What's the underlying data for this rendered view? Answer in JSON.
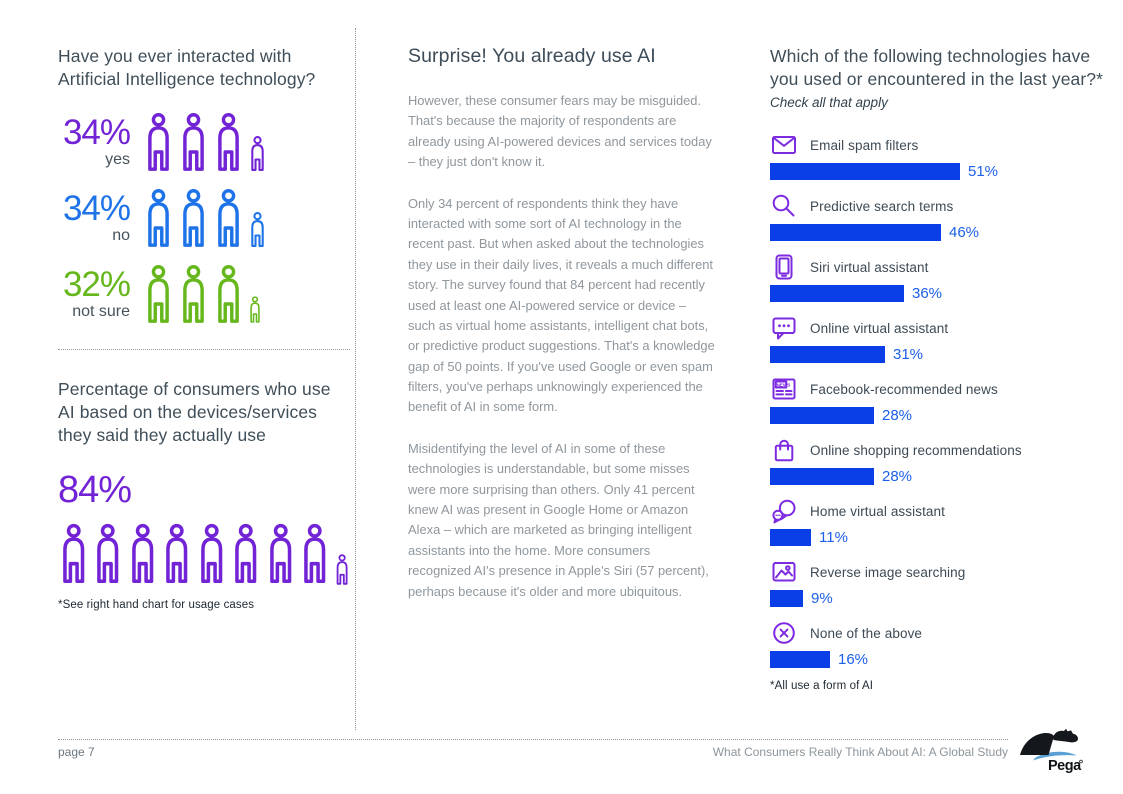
{
  "colors": {
    "purple": "#7223D6",
    "icon_purple": "#7D2BE0",
    "blue": "#1E73E8",
    "green": "#66B71C",
    "bar_blue": "#0A3FE8",
    "bar_label_blue": "#1C5FE8",
    "heading_slate": "#3F4E58",
    "body_gray": "#8F979D",
    "footnote_dark": "#1D2831"
  },
  "left_column": {
    "question": "Have you ever interacted with Artificial Intelligence technology?",
    "stats": [
      {
        "value": "34%",
        "label": "yes",
        "color_key": "purple",
        "people_full": 3,
        "small_scale": 0.6
      },
      {
        "value": "34%",
        "label": "no",
        "color_key": "blue",
        "people_full": 3,
        "small_scale": 0.6
      },
      {
        "value": "32%",
        "label": "not sure",
        "color_key": "green",
        "people_full": 3,
        "small_scale": 0.47
      }
    ],
    "usage": {
      "heading": "Percentage of consumers who use AI based on the devices/services they said they actually use",
      "value": "84%",
      "color_key": "purple",
      "people_full": 8,
      "small_scale": 0.5,
      "footnote": "*See right hand chart for usage cases"
    }
  },
  "middle_column": {
    "title": "Surprise! You already use AI",
    "paragraphs": [
      "However, these consumer fears may be misguided. That's because the majority of respondents are already using AI-powered devices and services today – they just don't know it.",
      "Only 34 percent of respondents think they have interacted with some sort of AI technology in the recent past. But when asked about the technologies they use in their daily lives, it reveals a much different story. The survey found that 84 percent had recently used at least one AI-powered service or device – such as virtual home assistants, intelligent chat bots, or predictive product suggestions. That's a knowledge gap of 50 points. If you've used Google or even spam filters, you've perhaps unknowingly experienced the benefit of AI in some form.",
      "Misidentifying the level of AI in some of these technologies is understandable, but some misses were more surprising than others. Only 41 percent knew AI was present in Google Home or Amazon Alexa – which are marketed as bringing intelligent assistants into the home. More consumers recognized AI's presence in Apple's Siri (57 percent), perhaps because it's older and more ubiquitous."
    ]
  },
  "right_column": {
    "question": "Which of the following technologies have you used or encountered in the last year?*",
    "subtitle": "Check all that apply",
    "footnote": "*All use a form of AI"
  },
  "chart_data": {
    "type": "bar",
    "orientation": "horizontal",
    "title": "Which of the following technologies have you used or encountered in the last year?*",
    "subtitle": "Check all that apply",
    "categories": [
      "Email spam filters",
      "Predictive search terms",
      "Siri virtual assistant",
      "Online virtual assistant",
      "Facebook-recommended news",
      "Online shopping recommendations",
      "Home virtual assistant",
      "Reverse image searching",
      "None of the above"
    ],
    "values": [
      51,
      46,
      36,
      31,
      28,
      28,
      11,
      9,
      16
    ],
    "value_labels": [
      "51%",
      "46%",
      "36%",
      "31%",
      "28%",
      "28%",
      "11%",
      "9%",
      "16%"
    ],
    "icons": [
      "envelope-icon",
      "search-icon",
      "tablet-icon",
      "chat-bubble-icon",
      "newspaper-icon",
      "shopping-bag-icon",
      "voice-bubbles-icon",
      "image-icon",
      "circle-x-icon"
    ],
    "unit": "%",
    "xlim": [
      0,
      55
    ],
    "bar_color": "#0A3FE8",
    "grid": false,
    "legend": false,
    "footnote": "*All use a form of AI"
  },
  "footer": {
    "page_label": "page 7",
    "doc_title": "What Consumers Really Think About AI: A Global Study",
    "logo_text": "Pega"
  }
}
